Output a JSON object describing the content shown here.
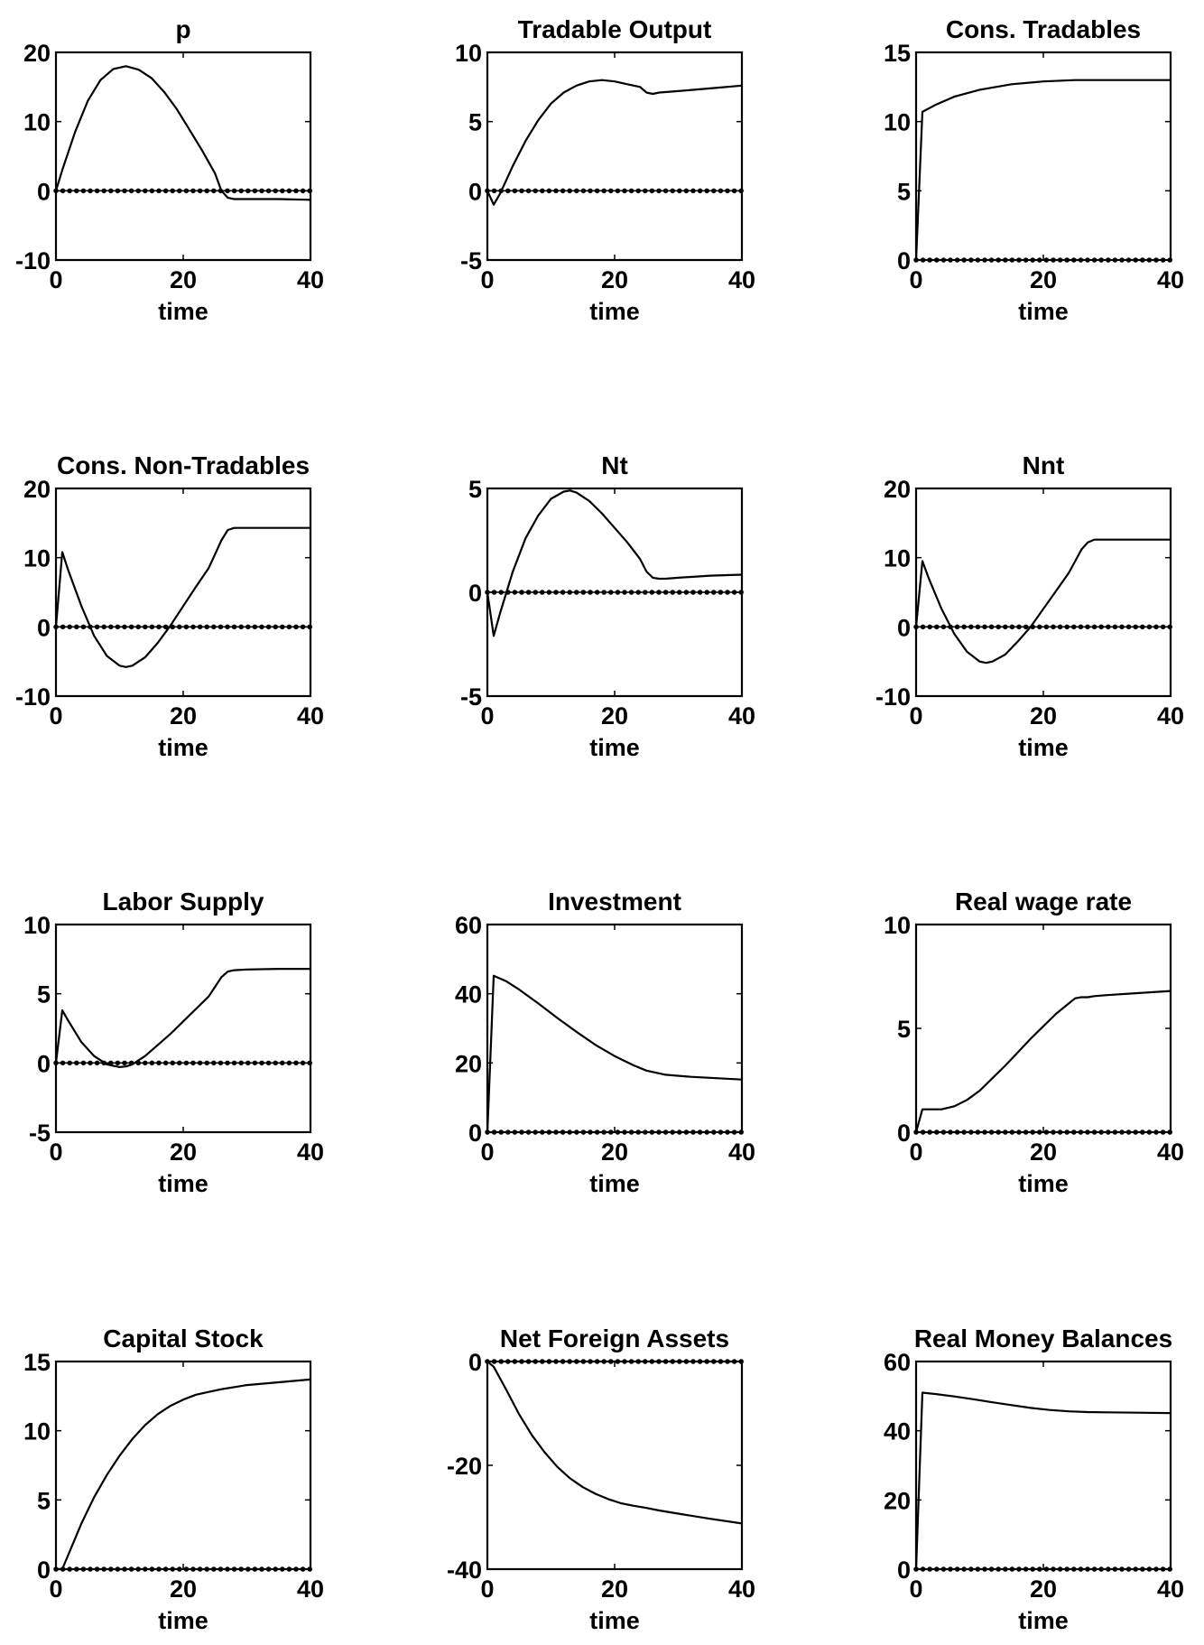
{
  "chart_data": [
    {
      "type": "line",
      "title": "p",
      "xlabel": "time",
      "ylabel": "",
      "xlim": [
        0,
        40
      ],
      "ylim": [
        -10,
        20
      ],
      "xticks": [
        0,
        20,
        40
      ],
      "yticks": [
        -10,
        0,
        10,
        20
      ],
      "grid": false,
      "series": [
        {
          "style": "solid",
          "x": [
            0,
            1,
            3,
            5,
            7,
            9,
            11,
            13,
            15,
            17,
            19,
            21,
            23,
            25,
            26,
            27,
            28,
            30,
            35,
            40
          ],
          "y": [
            0,
            3,
            8.5,
            13,
            16,
            17.6,
            18,
            17.5,
            16.3,
            14.3,
            11.8,
            8.8,
            5.8,
            2.5,
            0,
            -1,
            -1.2,
            -1.2,
            -1.2,
            -1.3
          ]
        },
        {
          "style": "dotted",
          "x": [
            0,
            40
          ],
          "y": [
            0,
            0
          ]
        }
      ]
    },
    {
      "type": "line",
      "title": "Tradable Output",
      "xlabel": "time",
      "ylabel": "",
      "xlim": [
        0,
        40
      ],
      "ylim": [
        -5,
        10
      ],
      "xticks": [
        0,
        20,
        40
      ],
      "yticks": [
        -5,
        0,
        5,
        10
      ],
      "grid": false,
      "series": [
        {
          "style": "solid",
          "x": [
            0,
            1,
            2,
            4,
            6,
            8,
            10,
            12,
            14,
            16,
            18,
            20,
            22,
            24,
            25,
            26,
            27,
            30,
            35,
            40
          ],
          "y": [
            0,
            -1,
            -0.2,
            1.8,
            3.6,
            5.1,
            6.3,
            7.1,
            7.6,
            7.9,
            8,
            7.9,
            7.7,
            7.5,
            7.1,
            7,
            7.1,
            7.2,
            7.4,
            7.6
          ]
        },
        {
          "style": "dotted",
          "x": [
            0,
            40
          ],
          "y": [
            0,
            0
          ]
        }
      ]
    },
    {
      "type": "line",
      "title": "Cons. Tradables",
      "xlabel": "time",
      "ylabel": "",
      "xlim": [
        0,
        40
      ],
      "ylim": [
        0,
        15
      ],
      "xticks": [
        0,
        20,
        40
      ],
      "yticks": [
        0,
        5,
        10,
        15
      ],
      "grid": false,
      "series": [
        {
          "style": "solid",
          "x": [
            0,
            1,
            3,
            6,
            10,
            15,
            20,
            25,
            30,
            35,
            40
          ],
          "y": [
            0,
            10.7,
            11.2,
            11.8,
            12.3,
            12.7,
            12.9,
            13,
            13,
            13,
            13
          ]
        },
        {
          "style": "dotted",
          "x": [
            0,
            40
          ],
          "y": [
            0,
            0
          ]
        }
      ]
    },
    {
      "type": "line",
      "title": "Cons. Non-Tradables",
      "xlabel": "time",
      "ylabel": "",
      "xlim": [
        0,
        40
      ],
      "ylim": [
        -10,
        20
      ],
      "xticks": [
        0,
        20,
        40
      ],
      "yticks": [
        -10,
        0,
        10,
        20
      ],
      "grid": false,
      "series": [
        {
          "style": "solid",
          "x": [
            0,
            1,
            2,
            4,
            6,
            8,
            10,
            11,
            12,
            14,
            16,
            18,
            20,
            22,
            24,
            25,
            26,
            27,
            28,
            30,
            35,
            40
          ],
          "y": [
            0,
            10.8,
            8,
            3,
            -1.3,
            -4.2,
            -5.6,
            -5.8,
            -5.6,
            -4.4,
            -2.3,
            0.2,
            3,
            5.8,
            8.5,
            10.5,
            12.5,
            14,
            14.3,
            14.3,
            14.3,
            14.3
          ]
        },
        {
          "style": "dotted",
          "x": [
            0,
            40
          ],
          "y": [
            0,
            0
          ]
        }
      ]
    },
    {
      "type": "line",
      "title": "Nt",
      "xlabel": "time",
      "ylabel": "",
      "xlim": [
        0,
        40
      ],
      "ylim": [
        -5,
        5
      ],
      "xticks": [
        0,
        20,
        40
      ],
      "yticks": [
        -5,
        0,
        5
      ],
      "grid": false,
      "series": [
        {
          "style": "solid",
          "x": [
            0,
            1,
            2,
            4,
            6,
            8,
            10,
            12,
            13,
            14,
            16,
            18,
            20,
            22,
            24,
            25,
            26,
            27,
            28,
            30,
            35,
            40
          ],
          "y": [
            0,
            -2.1,
            -1,
            1,
            2.6,
            3.7,
            4.5,
            4.85,
            4.9,
            4.8,
            4.4,
            3.8,
            3.1,
            2.4,
            1.6,
            1,
            0.7,
            0.65,
            0.65,
            0.7,
            0.8,
            0.85
          ]
        },
        {
          "style": "dotted",
          "x": [
            0,
            40
          ],
          "y": [
            0,
            0
          ]
        }
      ]
    },
    {
      "type": "line",
      "title": "Nnt",
      "xlabel": "time",
      "ylabel": "",
      "xlim": [
        0,
        40
      ],
      "ylim": [
        -10,
        20
      ],
      "xticks": [
        0,
        20,
        40
      ],
      "yticks": [
        -10,
        0,
        10,
        20
      ],
      "grid": false,
      "series": [
        {
          "style": "solid",
          "x": [
            0,
            1,
            2,
            4,
            6,
            8,
            10,
            11,
            12,
            14,
            16,
            18,
            20,
            22,
            24,
            25,
            26,
            27,
            28,
            30,
            35,
            40
          ],
          "y": [
            0,
            9.5,
            7,
            2.6,
            -1,
            -3.6,
            -5,
            -5.2,
            -5,
            -4,
            -2.1,
            0,
            2.6,
            5.2,
            7.8,
            9.5,
            11.2,
            12.2,
            12.6,
            12.6,
            12.6,
            12.6
          ]
        },
        {
          "style": "dotted",
          "x": [
            0,
            40
          ],
          "y": [
            0,
            0
          ]
        }
      ]
    },
    {
      "type": "line",
      "title": "Labor Supply",
      "xlabel": "time",
      "ylabel": "",
      "xlim": [
        0,
        40
      ],
      "ylim": [
        -5,
        10
      ],
      "xticks": [
        0,
        20,
        40
      ],
      "yticks": [
        -5,
        0,
        5,
        10
      ],
      "grid": false,
      "series": [
        {
          "style": "solid",
          "x": [
            0,
            1,
            2,
            4,
            6,
            8,
            10,
            11,
            12,
            14,
            16,
            18,
            20,
            22,
            24,
            25,
            26,
            27,
            28,
            30,
            35,
            40
          ],
          "y": [
            0,
            3.8,
            3,
            1.5,
            0.5,
            -0.1,
            -0.3,
            -0.25,
            -0.1,
            0.5,
            1.3,
            2.1,
            3,
            3.9,
            4.8,
            5.5,
            6.2,
            6.6,
            6.7,
            6.75,
            6.8,
            6.8
          ]
        },
        {
          "style": "dotted",
          "x": [
            0,
            40
          ],
          "y": [
            0,
            0
          ]
        }
      ]
    },
    {
      "type": "line",
      "title": "Investment",
      "xlabel": "time",
      "ylabel": "",
      "xlim": [
        0,
        40
      ],
      "ylim": [
        0,
        60
      ],
      "xticks": [
        0,
        20,
        40
      ],
      "yticks": [
        0,
        20,
        40,
        60
      ],
      "grid": false,
      "series": [
        {
          "style": "solid",
          "x": [
            0,
            1,
            3,
            5,
            8,
            11,
            14,
            17,
            20,
            23,
            25,
            28,
            32,
            36,
            40
          ],
          "y": [
            0,
            45.2,
            43.6,
            41.2,
            37.2,
            33,
            29,
            25.2,
            22,
            19.3,
            17.8,
            16.6,
            16,
            15.6,
            15.2
          ]
        },
        {
          "style": "dotted",
          "x": [
            0,
            40
          ],
          "y": [
            0,
            0
          ]
        }
      ]
    },
    {
      "type": "line",
      "title": "Real wage rate",
      "xlabel": "time",
      "ylabel": "",
      "xlim": [
        0,
        40
      ],
      "ylim": [
        0,
        10
      ],
      "xticks": [
        0,
        20,
        40
      ],
      "yticks": [
        0,
        5,
        10
      ],
      "grid": false,
      "series": [
        {
          "style": "solid",
          "x": [
            0,
            1,
            2,
            4,
            6,
            8,
            10,
            12,
            14,
            16,
            18,
            20,
            22,
            24,
            25,
            26,
            27,
            28,
            30,
            35,
            40
          ],
          "y": [
            0,
            1.1,
            1.1,
            1.1,
            1.25,
            1.55,
            2,
            2.6,
            3.2,
            3.85,
            4.5,
            5.1,
            5.7,
            6.2,
            6.45,
            6.5,
            6.5,
            6.55,
            6.6,
            6.7,
            6.8
          ]
        },
        {
          "style": "dotted",
          "x": [
            0,
            40
          ],
          "y": [
            0,
            0
          ]
        }
      ]
    },
    {
      "type": "line",
      "title": "Capital Stock",
      "xlabel": "time",
      "ylabel": "",
      "xlim": [
        0,
        40
      ],
      "ylim": [
        0,
        15
      ],
      "xticks": [
        0,
        20,
        40
      ],
      "yticks": [
        0,
        5,
        10,
        15
      ],
      "grid": false,
      "series": [
        {
          "style": "solid",
          "x": [
            0,
            1,
            2,
            4,
            6,
            8,
            10,
            12,
            14,
            16,
            18,
            20,
            22,
            24,
            26,
            28,
            30,
            35,
            40
          ],
          "y": [
            0,
            0,
            1.1,
            3.3,
            5.2,
            6.8,
            8.2,
            9.4,
            10.4,
            11.2,
            11.8,
            12.25,
            12.6,
            12.8,
            13,
            13.15,
            13.3,
            13.5,
            13.7
          ]
        },
        {
          "style": "dotted",
          "x": [
            0,
            40
          ],
          "y": [
            0,
            0
          ]
        }
      ]
    },
    {
      "type": "line",
      "title": "Net Foreign Assets",
      "xlabel": "time",
      "ylabel": "",
      "xlim": [
        0,
        40
      ],
      "ylim": [
        -40,
        0
      ],
      "xticks": [
        0,
        20,
        40
      ],
      "yticks": [
        -40,
        -20,
        0
      ],
      "grid": false,
      "series": [
        {
          "style": "solid",
          "x": [
            0,
            1,
            3,
            5,
            7,
            9,
            11,
            13,
            15,
            17,
            19,
            21,
            23,
            25,
            27,
            30,
            35,
            40
          ],
          "y": [
            0,
            -1,
            -5.5,
            -10.2,
            -14.2,
            -17.5,
            -20.3,
            -22.5,
            -24.2,
            -25.5,
            -26.5,
            -27.3,
            -27.8,
            -28.2,
            -28.7,
            -29.3,
            -30.3,
            -31.2
          ]
        },
        {
          "style": "dotted",
          "x": [
            0,
            40
          ],
          "y": [
            0,
            0
          ]
        }
      ]
    },
    {
      "type": "line",
      "title": "Real Money Balances",
      "xlabel": "time",
      "ylabel": "",
      "xlim": [
        0,
        40
      ],
      "ylim": [
        0,
        60
      ],
      "xticks": [
        0,
        20,
        40
      ],
      "yticks": [
        0,
        20,
        40,
        60
      ],
      "grid": false,
      "series": [
        {
          "style": "solid",
          "x": [
            0,
            1,
            3,
            6,
            9,
            12,
            15,
            18,
            21,
            24,
            27,
            30,
            35,
            40
          ],
          "y": [
            0,
            51,
            50.6,
            49.9,
            49.1,
            48.2,
            47.4,
            46.6,
            46,
            45.6,
            45.4,
            45.3,
            45.2,
            45.1
          ]
        },
        {
          "style": "dotted",
          "x": [
            0,
            40
          ],
          "y": [
            0,
            0
          ]
        }
      ]
    }
  ]
}
